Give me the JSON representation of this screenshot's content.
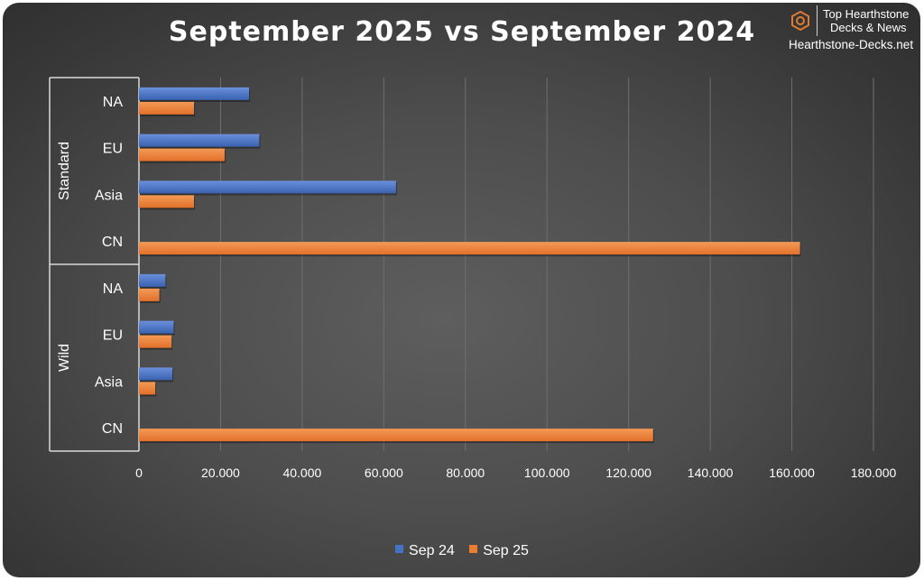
{
  "chart_data": {
    "type": "bar",
    "orientation": "horizontal",
    "title": "September 2025 vs September 2024",
    "groups": [
      {
        "name": "Standard",
        "categories": [
          "NA",
          "EU",
          "Asia",
          "CN"
        ]
      },
      {
        "name": "Wild",
        "categories": [
          "NA",
          "EU",
          "Asia",
          "CN"
        ]
      }
    ],
    "series": [
      {
        "name": "Sep 24",
        "color": "#4472c4",
        "values": [
          27000,
          29500,
          63000,
          0,
          6500,
          8500,
          8200,
          0
        ]
      },
      {
        "name": "Sep 25",
        "color": "#ed7d31",
        "values": [
          13500,
          21000,
          13500,
          162000,
          5000,
          8000,
          4000,
          126000
        ]
      }
    ],
    "xlim": [
      0,
      180000
    ],
    "x_ticks": [
      "0",
      "20.000",
      "40.000",
      "60.000",
      "80.000",
      "100.000",
      "120.000",
      "140.000",
      "160.000",
      "180.000"
    ],
    "grid": true,
    "legend": "bottom-center"
  },
  "brand": {
    "line1": "Top Hearthstone",
    "line2": "Decks & News",
    "site": "Hearthstone-Decks.net"
  }
}
